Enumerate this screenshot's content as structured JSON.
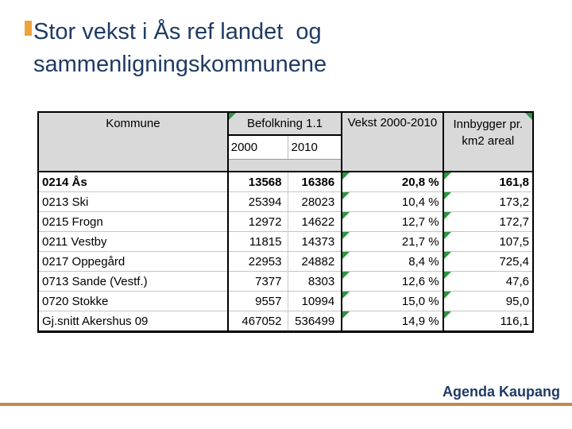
{
  "slide": {
    "title_lines": [
      "Stor vekst i Ås ref landet  og",
      "sammenligningskommunene"
    ],
    "footer_brand": "Agenda Kaupang"
  },
  "colors": {
    "title_navy": "#1F3B63",
    "footer_rule_tan": "#C18A4A",
    "accent_orange": "#EDA33C",
    "table_header_gray": "#D9D9D9",
    "flag_green": "#2E9540"
  },
  "table": {
    "headers": {
      "kommune": "Kommune",
      "befolkning_group": "Befolkning 1.1",
      "year_2000": "2000",
      "year_2010": "2010",
      "vekst": "Vekst 2000-2010",
      "innbygger": [
        "Innbygger pr.",
        "km2 areal"
      ]
    },
    "rows": [
      {
        "kommune": "0214 Ås",
        "pop_2000": "13568",
        "pop_2010": "16386",
        "vekst_pct": "20,8 %",
        "innb_per_km2": "161,8"
      },
      {
        "kommune": "0213 Ski",
        "pop_2000": "25394",
        "pop_2010": "28023",
        "vekst_pct": "10,4 %",
        "innb_per_km2": "173,2"
      },
      {
        "kommune": "0215 Frogn",
        "pop_2000": "12972",
        "pop_2010": "14622",
        "vekst_pct": "12,7 %",
        "innb_per_km2": "172,7"
      },
      {
        "kommune": "0211 Vestby",
        "pop_2000": "11815",
        "pop_2010": "14373",
        "vekst_pct": "21,7 %",
        "innb_per_km2": "107,5"
      },
      {
        "kommune": "0217 Oppegård",
        "pop_2000": "22953",
        "pop_2010": "24882",
        "vekst_pct": "8,4 %",
        "innb_per_km2": "725,4"
      },
      {
        "kommune": "0713 Sande (Vestf.)",
        "pop_2000": "7377",
        "pop_2010": "8303",
        "vekst_pct": "12,6 %",
        "innb_per_km2": "47,6"
      },
      {
        "kommune": "0720 Stokke",
        "pop_2000": "9557",
        "pop_2010": "10994",
        "vekst_pct": "15,0 %",
        "innb_per_km2": "95,0"
      },
      {
        "kommune": "Gj.snitt Akershus 09",
        "pop_2000": "467052",
        "pop_2010": "536499",
        "vekst_pct": "14,9 %",
        "innb_per_km2": "116,1"
      }
    ]
  }
}
